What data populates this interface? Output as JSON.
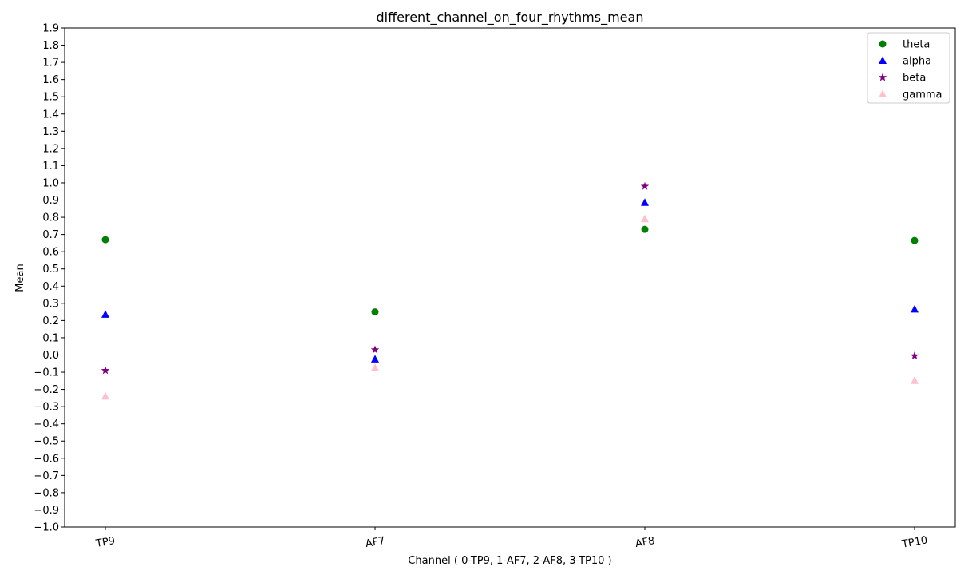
{
  "chart_data": {
    "type": "scatter",
    "title": "different_channel_on_four_rhythms_mean",
    "xlabel": "Channel ( 0-TP9, 1-AF7, 2-AF8, 3-TP10 )",
    "ylabel": "Mean",
    "categories": [
      "TP9",
      "AF7",
      "AF8",
      "TP10"
    ],
    "x": [
      0,
      1,
      2,
      3
    ],
    "ylim": [
      -1.0,
      1.9
    ],
    "yticks": [
      "-1.0",
      "-0.9",
      "-0.8",
      "-0.7",
      "-0.6",
      "-0.5",
      "-0.4",
      "-0.3",
      "-0.2",
      "-0.1",
      "0.0",
      "0.1",
      "0.2",
      "0.3",
      "0.4",
      "0.5",
      "0.6",
      "0.7",
      "0.8",
      "0.9",
      "1.0",
      "1.1",
      "1.2",
      "1.3",
      "1.4",
      "1.5",
      "1.6",
      "1.7",
      "1.8",
      "1.9"
    ],
    "grid": false,
    "legend": "top-right",
    "series": [
      {
        "name": "theta",
        "marker": "circle",
        "color": "#008000",
        "values": [
          0.67,
          0.25,
          0.73,
          0.665
        ]
      },
      {
        "name": "alpha",
        "marker": "triangle",
        "color": "#0000ff",
        "values": [
          0.235,
          -0.025,
          0.885,
          0.265
        ]
      },
      {
        "name": "beta",
        "marker": "star",
        "color": "#800080",
        "values": [
          -0.09,
          0.03,
          0.98,
          -0.005
        ]
      },
      {
        "name": "gamma",
        "marker": "triangle",
        "color": "#ffc0cb",
        "values": [
          -0.24,
          -0.075,
          0.79,
          -0.15
        ]
      }
    ]
  }
}
